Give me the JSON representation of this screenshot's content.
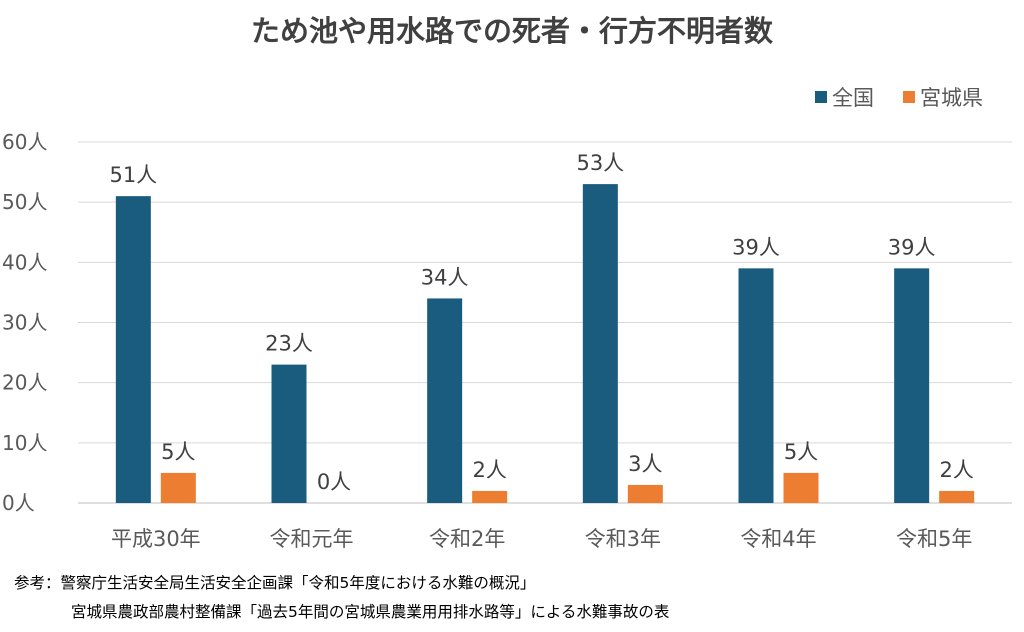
{
  "chart_data": {
    "type": "bar",
    "title": "ため池や用水路での死者・行方不明者数",
    "categories": [
      "平成30年",
      "令和元年",
      "令和2年",
      "令和3年",
      "令和4年",
      "令和5年"
    ],
    "series": [
      {
        "name": "全国",
        "values": [
          51,
          23,
          34,
          53,
          39,
          39
        ],
        "color": "#1a5c7e"
      },
      {
        "name": "宮城県",
        "values": [
          5,
          0,
          2,
          3,
          5,
          2
        ],
        "color": "#ed7d31"
      }
    ],
    "data_label_suffix": "人",
    "y_tick_labels": [
      "0人",
      "10人",
      "20人",
      "30人",
      "40人",
      "50人",
      "60人"
    ],
    "ylim": [
      0,
      60
    ],
    "grid": true,
    "legend_position": "top-right",
    "xlabel": "",
    "ylabel": ""
  },
  "footer": {
    "line1": "参考：警察庁生活安全局生活安全企画課「令和5年度における水難の概況」",
    "line2": "宮城県農政部農村整備課「過去5年間の宮城県農業用用排水路等」による水難事故の表"
  }
}
